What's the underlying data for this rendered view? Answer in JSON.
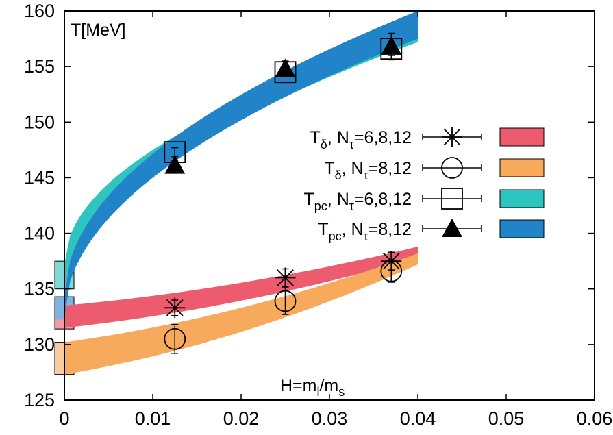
{
  "chart_data": {
    "type": "scatter",
    "ylabel": "T[MeV]",
    "xlabel": "H=m_l/m_s",
    "xlabel_parts": {
      "main": "H=m",
      "sub1": "l",
      "slash": "/m",
      "sub2": "s"
    },
    "xlim": [
      0,
      0.06
    ],
    "ylim": [
      125,
      160
    ],
    "x_ticks": [
      0,
      0.01,
      0.02,
      0.03,
      0.04,
      0.05,
      0.06
    ],
    "x_tick_labels": [
      "0",
      "0.01",
      "0.02",
      "0.03",
      "0.04",
      "0.05",
      "0.06"
    ],
    "y_ticks": [
      125,
      130,
      135,
      140,
      145,
      150,
      155,
      160
    ],
    "y_tick_labels": [
      "125",
      "130",
      "135",
      "140",
      "145",
      "150",
      "155",
      "160"
    ],
    "legend_position": "right",
    "grid": false,
    "series": [
      {
        "name": "T_δ, N_τ=6,8,12",
        "label": {
          "T": "T",
          "sub": "δ",
          "mid": ", N",
          "tau": "τ",
          "rest": "=6,8,12"
        },
        "marker": "star",
        "color": "#000000",
        "points": [
          {
            "x": 0.0125,
            "y": 133.3,
            "err": 0.7
          },
          {
            "x": 0.025,
            "y": 136.0,
            "err": 0.8
          },
          {
            "x": 0.037,
            "y": 137.5,
            "err": 0.8
          }
        ],
        "band": {
          "color": "#ec5b6e",
          "x": [
            0,
            0.04
          ],
          "lower": [
            131.5,
            137.8
          ],
          "upper": [
            133.5,
            138.8
          ]
        },
        "chiral_limit_box": {
          "y": [
            131.4,
            133.5
          ],
          "color": "#f29aa6"
        }
      },
      {
        "name": "T_δ, N_τ=8,12",
        "label": {
          "T": "T",
          "sub": "δ",
          "mid": ", N",
          "tau": "τ",
          "rest": "=8,12"
        },
        "marker": "circle",
        "color": "#000000",
        "points": [
          {
            "x": 0.0125,
            "y": 130.5,
            "err": 1.3
          },
          {
            "x": 0.025,
            "y": 133.9,
            "err": 1.2
          },
          {
            "x": 0.037,
            "y": 136.6,
            "err": 1.0
          }
        ],
        "band": {
          "color": "#f7a95c",
          "x": [
            0,
            0.04
          ],
          "lower": [
            127.3,
            137.2
          ],
          "upper": [
            130.2,
            138.2
          ]
        },
        "chiral_limit_box": {
          "y": [
            127.3,
            130.2
          ],
          "color": "#f9cca0"
        }
      },
      {
        "name": "T_pc, N_τ=6,8,12",
        "label": {
          "T": "T",
          "sub": "pc",
          "mid": ", N",
          "tau": "τ",
          "rest": "=6,8,12"
        },
        "marker": "square",
        "color": "#000000",
        "points": [
          {
            "x": 0.0125,
            "y": 147.3,
            "err": 0.4
          },
          {
            "x": 0.025,
            "y": 154.5,
            "err": 0.4
          },
          {
            "x": 0.037,
            "y": 156.6,
            "err": 0.6
          }
        ],
        "band": {
          "color": "#2ec4c0",
          "x": [
            0,
            0.04
          ],
          "lower": [
            133.8,
            157.2
          ],
          "upper": [
            137.2,
            157.8
          ]
        },
        "chiral_limit_box": {
          "y": [
            135.0,
            137.5
          ],
          "color": "#7fd9d6"
        }
      },
      {
        "name": "T_pc, N_τ=8,12",
        "label": {
          "T": "T",
          "sub": "pc",
          "mid": ", N",
          "tau": "τ",
          "rest": "=8,12"
        },
        "marker": "triangle",
        "color": "#000000",
        "points": [
          {
            "x": 0.0125,
            "y": 146.1,
            "err": 0.4
          },
          {
            "x": 0.025,
            "y": 154.8,
            "err": 0.7
          },
          {
            "x": 0.037,
            "y": 156.8,
            "err": 1.2
          }
        ],
        "band": {
          "color": "#2183c8",
          "x": [
            0,
            0.04
          ],
          "lower": [
            132.5,
            157.5
          ],
          "upper": [
            134.3,
            160.0
          ]
        },
        "chiral_limit_box": {
          "y": [
            132.3,
            134.3
          ],
          "color": "#7fb4de"
        }
      }
    ]
  }
}
